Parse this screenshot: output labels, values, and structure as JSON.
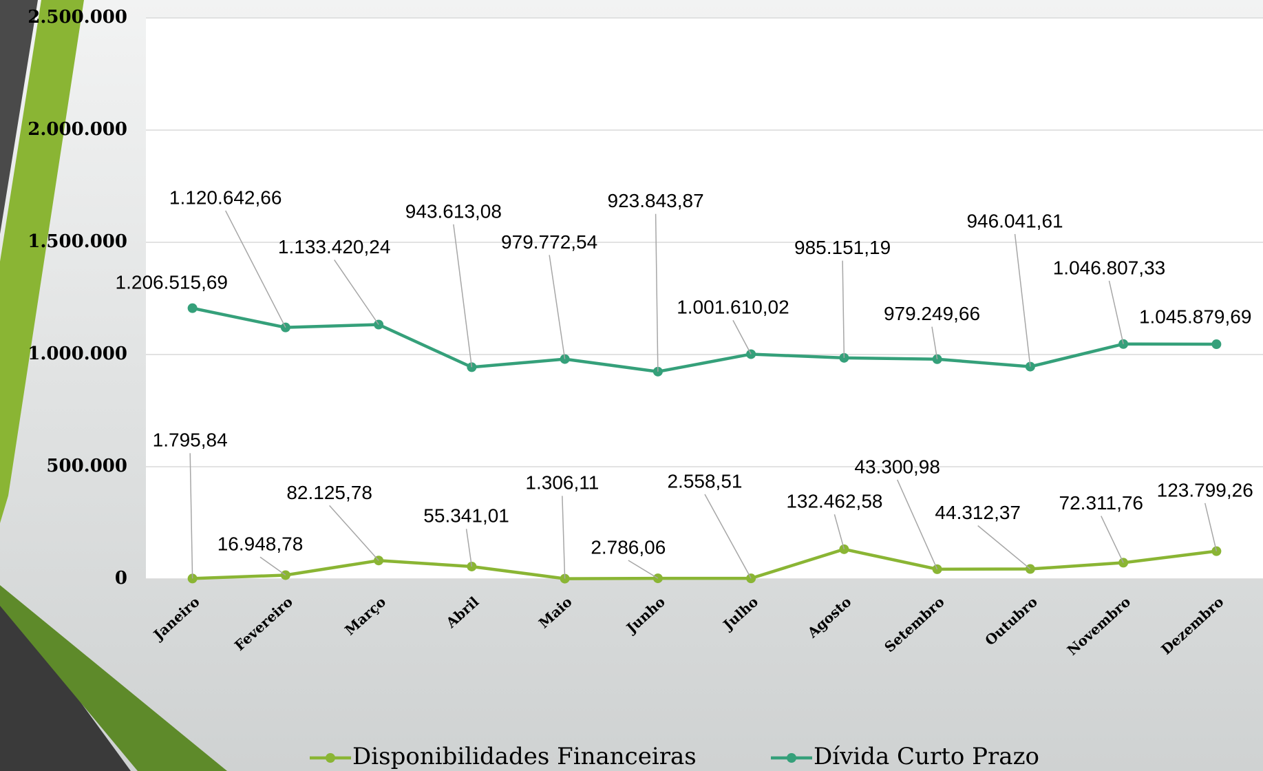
{
  "chart_data": {
    "type": "line",
    "categories": [
      "Janeiro",
      "Fevereiro",
      "Março",
      "Abril",
      "Maio",
      "Junho",
      "Julho",
      "Agosto",
      "Setembro",
      "Outubro",
      "Novembro",
      "Dezembro"
    ],
    "series": [
      {
        "name": "Disponibilidades Financeiras",
        "color": "#8ab534",
        "values": [
          1795.84,
          16948.78,
          82125.78,
          55341.01,
          1306.11,
          2786.06,
          2558.51,
          132462.58,
          43300.98,
          44312.37,
          72311.76,
          123799.26
        ],
        "value_labels": [
          "1.795,84",
          "16.948,78",
          "82.125,78",
          "55.341,01",
          "1.306,11",
          "2.786,06",
          "2.558,51",
          "132.462,58",
          "43.300,98",
          "44.312,37",
          "72.311,76",
          "123.799,26"
        ]
      },
      {
        "name": "Dívida Curto Prazo",
        "color": "#35a07a",
        "values": [
          1206515.69,
          1120642.66,
          1133420.24,
          943613.08,
          979772.54,
          923843.87,
          1001610.02,
          985151.19,
          979249.66,
          946041.61,
          1046807.33,
          1045879.69
        ],
        "value_labels": [
          "1.206.515,69",
          "1.120.642,66",
          "1.133.420,24",
          "943.613,08",
          "979.772,54",
          "923.843,87",
          "1.001.610,02",
          "985.151,19",
          "979.249,66",
          "946.041,61",
          "1.046.807,33",
          "1.045.879,69"
        ]
      }
    ],
    "ylim": [
      0,
      2500000
    ],
    "yticks": [
      0,
      {
        "value": 500000,
        "label": "500.000"
      },
      {
        "value": 1000000,
        "label": "1.000.000"
      },
      {
        "value": 1500000,
        "label": "1.500.000"
      },
      {
        "value": 2000000,
        "label": "2.000.000"
      },
      {
        "value": 2500000,
        "label": "2.500.000"
      }
    ],
    "grid": true,
    "legend": "bottom"
  }
}
